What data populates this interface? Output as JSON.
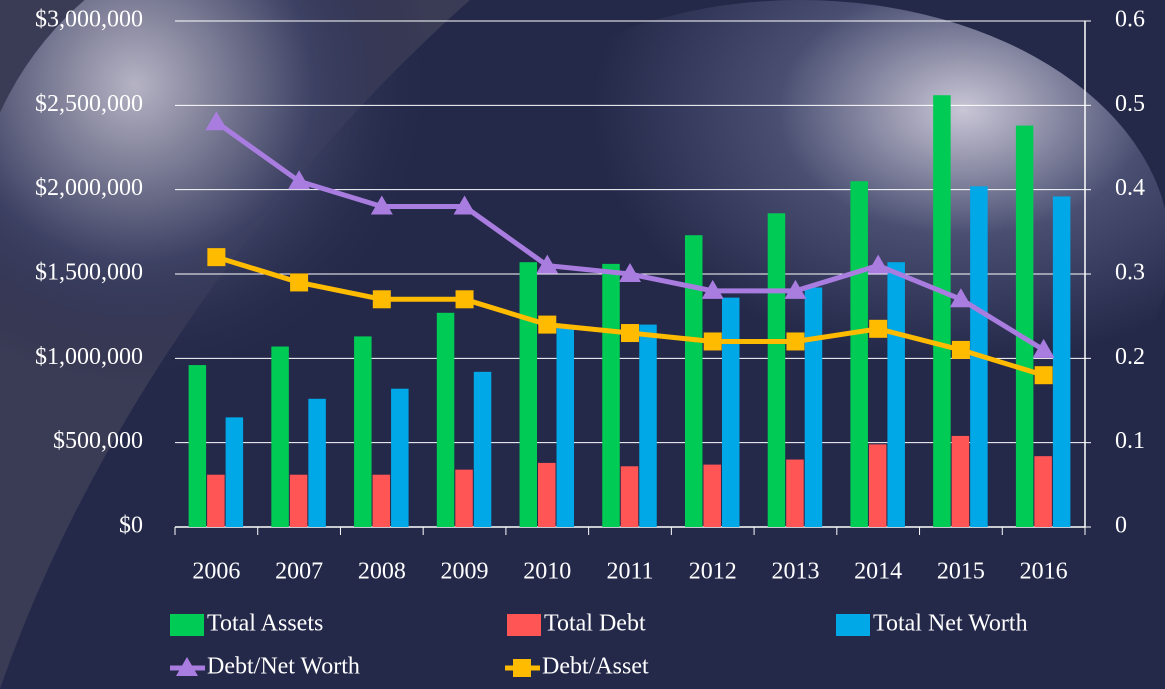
{
  "chart_data": {
    "type": "bar",
    "categories": [
      "2006",
      "2007",
      "2008",
      "2009",
      "2010",
      "2011",
      "2012",
      "2013",
      "2014",
      "2015",
      "2016"
    ],
    "series": [
      {
        "name": "Total Assets",
        "color": "#00cc55",
        "values": [
          960000,
          1070000,
          1130000,
          1270000,
          1570000,
          1560000,
          1730000,
          1860000,
          2050000,
          2560000,
          2380000
        ]
      },
      {
        "name": "Total Debt",
        "color": "#ff5555",
        "values": [
          310000,
          310000,
          310000,
          340000,
          380000,
          360000,
          370000,
          400000,
          490000,
          540000,
          420000
        ]
      },
      {
        "name": "Total Net Worth",
        "color": "#00a8e8",
        "values": [
          650000,
          760000,
          820000,
          920000,
          1180000,
          1200000,
          1360000,
          1420000,
          1570000,
          2020000,
          1960000
        ]
      },
      {
        "name": "Debt/Net Worth",
        "color": "#a97de0",
        "type": "line",
        "marker": "triangle",
        "axis": "y2",
        "values": [
          0.48,
          0.41,
          0.38,
          0.38,
          0.31,
          0.3,
          0.28,
          0.28,
          0.31,
          0.27,
          0.21
        ]
      },
      {
        "name": "Debt/Asset",
        "color": "#ffbb00",
        "type": "line",
        "marker": "square",
        "axis": "y2",
        "values": [
          0.32,
          0.29,
          0.27,
          0.27,
          0.24,
          0.23,
          0.22,
          0.22,
          0.235,
          0.21,
          0.18
        ]
      }
    ],
    "ylim": [
      0,
      3000000
    ],
    "yticks": [
      {
        "value": 0,
        "label": "$0"
      },
      {
        "value": 500000,
        "label": "$500,000"
      },
      {
        "value": 1000000,
        "label": "$1,000,000"
      },
      {
        "value": 1500000,
        "label": "$1,500,000"
      },
      {
        "value": 2000000,
        "label": "$2,000,000"
      },
      {
        "value": 2500000,
        "label": "$2,500,000"
      },
      {
        "value": 3000000,
        "label": "$3,000,000"
      }
    ],
    "y2lim": [
      0,
      0.6
    ],
    "y2ticks": [
      0,
      0.1,
      0.2,
      0.3,
      0.4,
      0.5,
      0.6
    ],
    "grid": true,
    "legend": "bottom"
  }
}
